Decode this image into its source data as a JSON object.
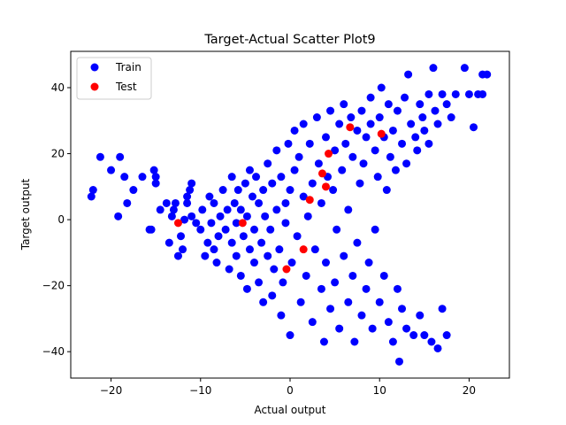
{
  "chart_data": {
    "type": "scatter",
    "title": "Target-Actual Scatter Plot9",
    "xlabel": "Actual output",
    "ylabel": "Target output",
    "xlim": [
      -24.5,
      24.5
    ],
    "ylim": [
      -48,
      51
    ],
    "xticks": [
      -20,
      -10,
      0,
      10,
      20
    ],
    "yticks": [
      -40,
      -20,
      0,
      20,
      40
    ],
    "grid": false,
    "legend": {
      "placement": "upper-left",
      "entries": [
        "Train",
        "Test"
      ]
    },
    "colors": {
      "train": "#0000ff",
      "test": "#ff0000"
    },
    "series": [
      {
        "name": "Train",
        "points": [
          [
            -22.2,
            7
          ],
          [
            -22,
            9
          ],
          [
            -21.2,
            19
          ],
          [
            -20,
            15
          ],
          [
            -19.2,
            1
          ],
          [
            -19,
            19
          ],
          [
            -18.5,
            13
          ],
          [
            -18.2,
            5
          ],
          [
            -17.5,
            9
          ],
          [
            -16.5,
            13
          ],
          [
            -15.7,
            -3
          ],
          [
            -15.2,
            15
          ],
          [
            -15,
            13
          ],
          [
            -15,
            11
          ],
          [
            -15.5,
            -3
          ],
          [
            -14.5,
            3
          ],
          [
            -13.8,
            5
          ],
          [
            -13.5,
            -7
          ],
          [
            -13.2,
            1
          ],
          [
            -13,
            3
          ],
          [
            -12.8,
            5
          ],
          [
            -12.5,
            -11
          ],
          [
            -12.2,
            -5
          ],
          [
            -12,
            -9
          ],
          [
            -11.8,
            0
          ],
          [
            -11.5,
            5
          ],
          [
            -11.5,
            7
          ],
          [
            -11.2,
            9
          ],
          [
            -11,
            11
          ],
          [
            -11,
            1
          ],
          [
            -10.5,
            -1
          ],
          [
            -10,
            -3
          ],
          [
            -9.8,
            3
          ],
          [
            -9.5,
            -11
          ],
          [
            -9.2,
            -7
          ],
          [
            -9,
            7
          ],
          [
            -8.8,
            -1
          ],
          [
            -8.5,
            -9
          ],
          [
            -8.5,
            5
          ],
          [
            -8.2,
            -13
          ],
          [
            -8,
            -5
          ],
          [
            -7.8,
            1
          ],
          [
            -7.5,
            9
          ],
          [
            -7.2,
            -3
          ],
          [
            -7,
            3
          ],
          [
            -6.8,
            -15
          ],
          [
            -6.5,
            -7
          ],
          [
            -6.5,
            13
          ],
          [
            -6.2,
            5
          ],
          [
            -6,
            -11
          ],
          [
            -6,
            -1
          ],
          [
            -5.8,
            9
          ],
          [
            -5.5,
            -17
          ],
          [
            -5.5,
            3
          ],
          [
            -5.2,
            -5
          ],
          [
            -5,
            11
          ],
          [
            -4.8,
            -21
          ],
          [
            -4.8,
            1
          ],
          [
            -4.5,
            -9
          ],
          [
            -4.5,
            15
          ],
          [
            -4.2,
            7
          ],
          [
            -4,
            -13
          ],
          [
            -4,
            -3
          ],
          [
            -3.8,
            13
          ],
          [
            -3.5,
            -19
          ],
          [
            -3.5,
            5
          ],
          [
            -3.2,
            -7
          ],
          [
            -3,
            9
          ],
          [
            -3,
            -25
          ],
          [
            -2.8,
            1
          ],
          [
            -2.5,
            -11
          ],
          [
            -2.5,
            17
          ],
          [
            -2.2,
            -3
          ],
          [
            -2,
            11
          ],
          [
            -2,
            -23
          ],
          [
            -1.8,
            -15
          ],
          [
            -1.5,
            3
          ],
          [
            -1.5,
            21
          ],
          [
            -1.2,
            -9
          ],
          [
            -1,
            13
          ],
          [
            -1,
            -29
          ],
          [
            -0.8,
            -19
          ],
          [
            -0.5,
            5
          ],
          [
            -0.5,
            -1
          ],
          [
            -0.2,
            23
          ],
          [
            0,
            -35
          ],
          [
            0,
            9
          ],
          [
            0.2,
            -13
          ],
          [
            0.5,
            15
          ],
          [
            0.5,
            27
          ],
          [
            0.8,
            -5
          ],
          [
            1,
            19
          ],
          [
            1.2,
            -25
          ],
          [
            1.5,
            7
          ],
          [
            1.5,
            29
          ],
          [
            1.8,
            -17
          ],
          [
            2,
            1
          ],
          [
            2.2,
            23
          ],
          [
            2.5,
            -31
          ],
          [
            2.5,
            11
          ],
          [
            2.8,
            -9
          ],
          [
            3,
            31
          ],
          [
            3.2,
            17
          ],
          [
            3.5,
            -21
          ],
          [
            3.5,
            5
          ],
          [
            3.8,
            -37
          ],
          [
            4,
            25
          ],
          [
            4,
            -13
          ],
          [
            4.2,
            13
          ],
          [
            4.5,
            -27
          ],
          [
            4.5,
            33
          ],
          [
            4.8,
            9
          ],
          [
            5,
            -19
          ],
          [
            5,
            21
          ],
          [
            5.2,
            -3
          ],
          [
            5.5,
            29
          ],
          [
            5.5,
            -33
          ],
          [
            5.8,
            15
          ],
          [
            6,
            -11
          ],
          [
            6,
            35
          ],
          [
            6.2,
            23
          ],
          [
            6.5,
            -25
          ],
          [
            6.5,
            3
          ],
          [
            6.8,
            31
          ],
          [
            7,
            -17
          ],
          [
            7,
            19
          ],
          [
            7.2,
            -37
          ],
          [
            7.5,
            27
          ],
          [
            7.5,
            -7
          ],
          [
            7.8,
            11
          ],
          [
            8,
            -29
          ],
          [
            8,
            33
          ],
          [
            8.2,
            17
          ],
          [
            8.5,
            -21
          ],
          [
            8.5,
            25
          ],
          [
            8.8,
            -13
          ],
          [
            9,
            37
          ],
          [
            9,
            29
          ],
          [
            9.2,
            -33
          ],
          [
            9.5,
            21
          ],
          [
            9.5,
            -3
          ],
          [
            9.8,
            13
          ],
          [
            10,
            -25
          ],
          [
            10,
            31
          ],
          [
            10.2,
            40
          ],
          [
            10.5,
            -17
          ],
          [
            10.5,
            25
          ],
          [
            10.8,
            9
          ],
          [
            11,
            -31
          ],
          [
            11,
            35
          ],
          [
            11.2,
            19
          ],
          [
            11.5,
            -37
          ],
          [
            11.5,
            27
          ],
          [
            11.8,
            15
          ],
          [
            12,
            -21
          ],
          [
            12,
            33
          ],
          [
            12.2,
            -43
          ],
          [
            12.5,
            23
          ],
          [
            12.5,
            -27
          ],
          [
            12.8,
            37
          ],
          [
            13,
            17
          ],
          [
            13,
            -33
          ],
          [
            13.2,
            44
          ],
          [
            13.5,
            29
          ],
          [
            13.8,
            -35
          ],
          [
            14,
            25
          ],
          [
            14.2,
            21
          ],
          [
            14.5,
            -29
          ],
          [
            14.5,
            35
          ],
          [
            14.8,
            31
          ],
          [
            15,
            -35
          ],
          [
            15,
            27
          ],
          [
            15.5,
            38
          ],
          [
            15.5,
            23
          ],
          [
            15.8,
            -37
          ],
          [
            16,
            46
          ],
          [
            16.2,
            33
          ],
          [
            16.5,
            -39
          ],
          [
            16.5,
            29
          ],
          [
            17,
            38
          ],
          [
            17,
            -27
          ],
          [
            17.5,
            35
          ],
          [
            17.5,
            -35
          ],
          [
            18,
            31
          ],
          [
            18.5,
            38
          ],
          [
            19.5,
            46
          ],
          [
            20,
            38
          ],
          [
            20.5,
            28
          ],
          [
            21,
            38
          ],
          [
            21.5,
            44
          ],
          [
            22,
            44
          ],
          [
            21.5,
            38
          ]
        ]
      },
      {
        "name": "Test",
        "points": [
          [
            -12.5,
            -1
          ],
          [
            -5.3,
            -1
          ],
          [
            -0.4,
            -15
          ],
          [
            1.5,
            -9
          ],
          [
            2.2,
            6
          ],
          [
            3.6,
            14
          ],
          [
            4,
            10
          ],
          [
            4.3,
            20
          ],
          [
            6.7,
            28
          ],
          [
            10.2,
            26
          ]
        ]
      }
    ]
  }
}
